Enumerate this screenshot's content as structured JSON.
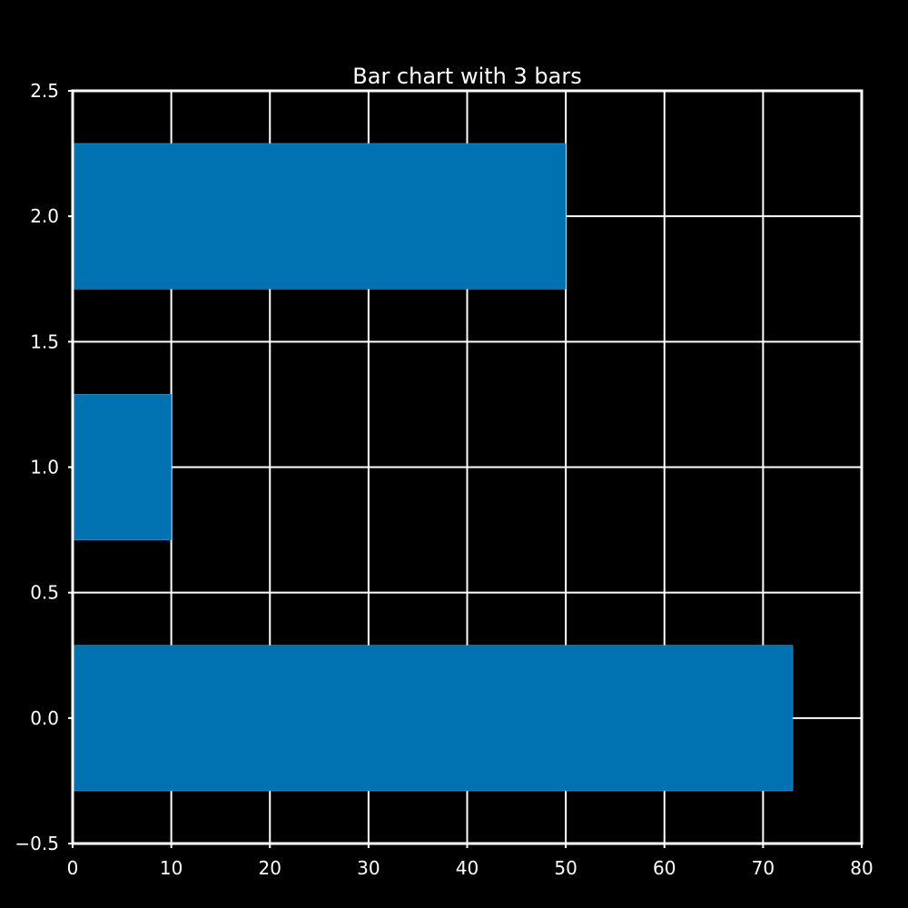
{
  "chart_data": {
    "type": "bar",
    "orientation": "horizontal",
    "title": "Bar chart with 3 bars",
    "xlabel": "",
    "ylabel": "",
    "categories": [
      0,
      1,
      2
    ],
    "values": [
      73,
      10,
      50
    ],
    "bar_height": 0.58,
    "xlim": [
      0,
      80
    ],
    "ylim": [
      -0.5,
      2.5
    ],
    "xticks": [
      0,
      10,
      20,
      30,
      40,
      50,
      60,
      70,
      80
    ],
    "yticks": [
      -0.5,
      0.0,
      0.5,
      1.0,
      1.5,
      2.0,
      2.5
    ],
    "xtick_labels": [
      "0",
      "10",
      "20",
      "30",
      "40",
      "50",
      "60",
      "70",
      "80"
    ],
    "ytick_labels": [
      "−0.5",
      "0.0",
      "0.5",
      "1.0",
      "1.5",
      "2.0",
      "2.5"
    ],
    "grid": true,
    "colors": {
      "bar": "#0072b2",
      "background": "#000000",
      "foreground": "#ffffff"
    }
  }
}
